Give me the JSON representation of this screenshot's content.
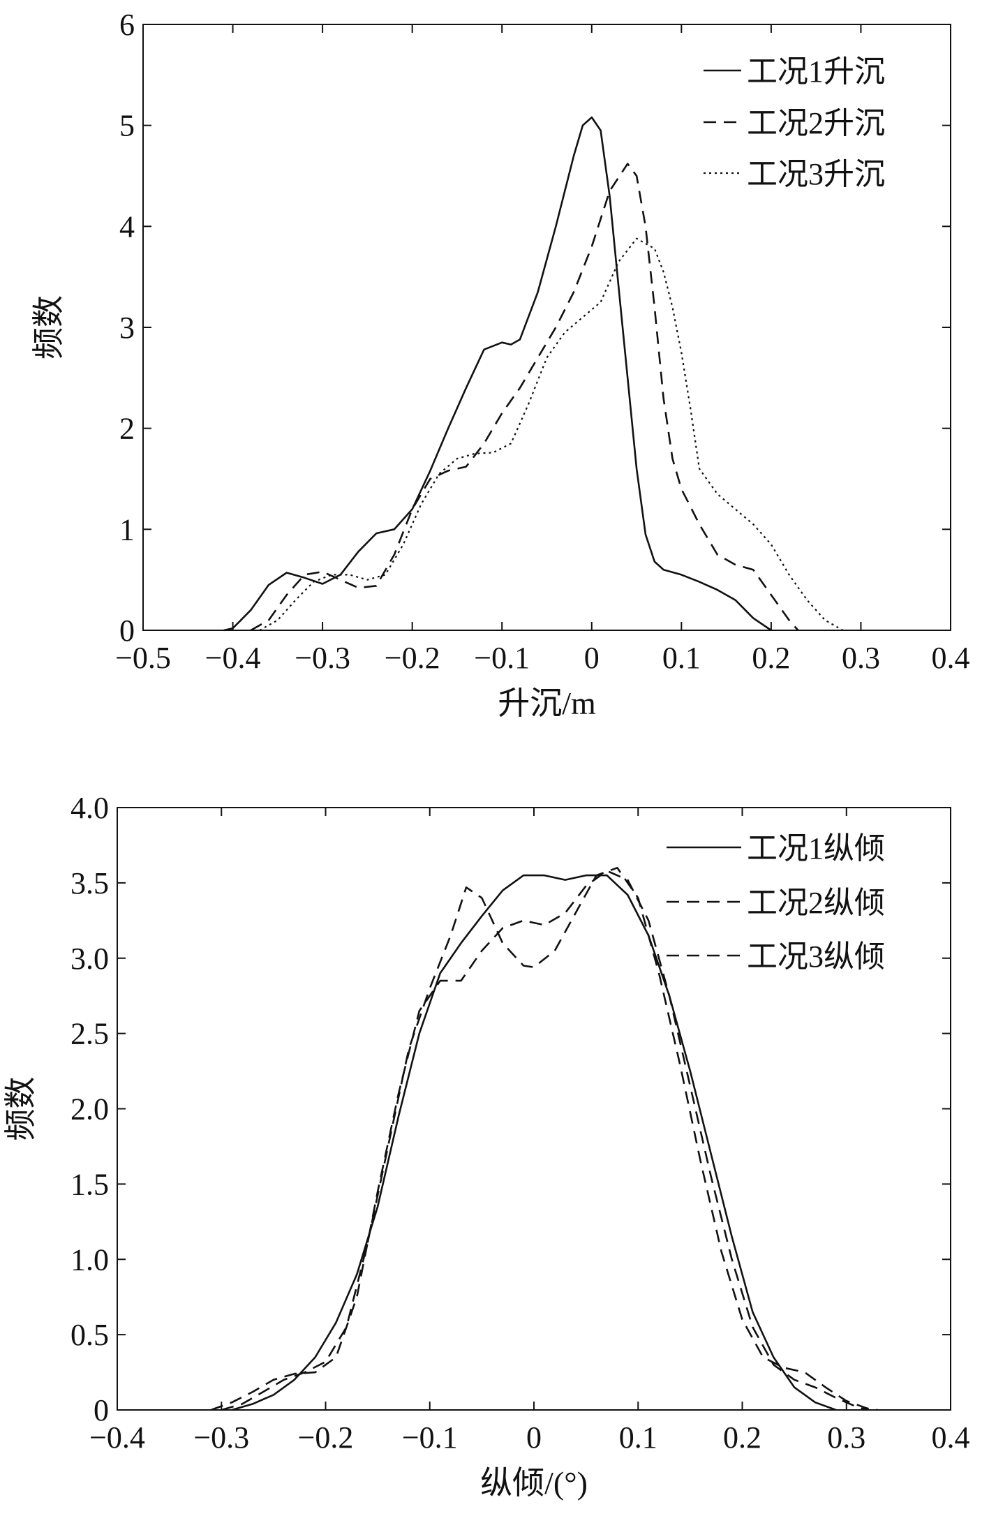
{
  "chart_data": [
    {
      "type": "line",
      "xlabel": "升沉/m",
      "ylabel": "频数",
      "xlim": [
        -0.5,
        0.4
      ],
      "ylim": [
        0,
        6
      ],
      "xticks": [
        -0.5,
        -0.4,
        -0.3,
        -0.2,
        -0.1,
        0,
        0.1,
        0.2,
        0.3,
        0.4
      ],
      "xtick_labels": [
        "−0.5",
        "−0.4",
        "−0.3",
        "−0.2",
        "−0.1",
        "0",
        "0.1",
        "0.2",
        "0.3",
        "0.4"
      ],
      "yticks": [
        0,
        1,
        2,
        3,
        4,
        5,
        6
      ],
      "ytick_labels": [
        "0",
        "1",
        "2",
        "3",
        "4",
        "5",
        "6"
      ],
      "grid": false,
      "legend_position": "top-right",
      "series": [
        {
          "name": "工况1升沉",
          "style": "solid",
          "points": [
            [
              -0.41,
              0
            ],
            [
              -0.4,
              0.02
            ],
            [
              -0.38,
              0.2
            ],
            [
              -0.36,
              0.45
            ],
            [
              -0.34,
              0.57
            ],
            [
              -0.32,
              0.52
            ],
            [
              -0.3,
              0.46
            ],
            [
              -0.28,
              0.55
            ],
            [
              -0.26,
              0.78
            ],
            [
              -0.24,
              0.96
            ],
            [
              -0.22,
              1.0
            ],
            [
              -0.2,
              1.2
            ],
            [
              -0.18,
              1.58
            ],
            [
              -0.16,
              2.0
            ],
            [
              -0.14,
              2.4
            ],
            [
              -0.12,
              2.78
            ],
            [
              -0.1,
              2.85
            ],
            [
              -0.09,
              2.83
            ],
            [
              -0.08,
              2.88
            ],
            [
              -0.06,
              3.35
            ],
            [
              -0.04,
              4.0
            ],
            [
              -0.02,
              4.7
            ],
            [
              -0.01,
              5.0
            ],
            [
              0.0,
              5.08
            ],
            [
              0.01,
              4.95
            ],
            [
              0.02,
              4.3
            ],
            [
              0.03,
              3.4
            ],
            [
              0.04,
              2.5
            ],
            [
              0.05,
              1.6
            ],
            [
              0.06,
              0.95
            ],
            [
              0.07,
              0.68
            ],
            [
              0.08,
              0.6
            ],
            [
              0.1,
              0.55
            ],
            [
              0.12,
              0.48
            ],
            [
              0.14,
              0.4
            ],
            [
              0.16,
              0.3
            ],
            [
              0.18,
              0.12
            ],
            [
              0.2,
              0
            ]
          ]
        },
        {
          "name": "工况2升沉",
          "style": "dashed",
          "points": [
            [
              -0.38,
              0
            ],
            [
              -0.36,
              0.1
            ],
            [
              -0.34,
              0.35
            ],
            [
              -0.32,
              0.55
            ],
            [
              -0.3,
              0.58
            ],
            [
              -0.28,
              0.5
            ],
            [
              -0.26,
              0.42
            ],
            [
              -0.24,
              0.44
            ],
            [
              -0.22,
              0.75
            ],
            [
              -0.2,
              1.2
            ],
            [
              -0.18,
              1.5
            ],
            [
              -0.16,
              1.58
            ],
            [
              -0.14,
              1.62
            ],
            [
              -0.12,
              1.85
            ],
            [
              -0.1,
              2.15
            ],
            [
              -0.08,
              2.4
            ],
            [
              -0.06,
              2.7
            ],
            [
              -0.04,
              3.0
            ],
            [
              -0.02,
              3.35
            ],
            [
              0.0,
              3.8
            ],
            [
              0.02,
              4.35
            ],
            [
              0.04,
              4.62
            ],
            [
              0.05,
              4.5
            ],
            [
              0.06,
              4.0
            ],
            [
              0.07,
              3.2
            ],
            [
              0.08,
              2.3
            ],
            [
              0.09,
              1.7
            ],
            [
              0.1,
              1.4
            ],
            [
              0.12,
              1.05
            ],
            [
              0.14,
              0.75
            ],
            [
              0.16,
              0.65
            ],
            [
              0.18,
              0.6
            ],
            [
              0.2,
              0.35
            ],
            [
              0.22,
              0.1
            ],
            [
              0.23,
              0
            ]
          ]
        },
        {
          "name": "工况3升沉",
          "style": "dotted",
          "points": [
            [
              -0.37,
              0
            ],
            [
              -0.35,
              0.1
            ],
            [
              -0.33,
              0.3
            ],
            [
              -0.31,
              0.48
            ],
            [
              -0.29,
              0.55
            ],
            [
              -0.27,
              0.55
            ],
            [
              -0.25,
              0.5
            ],
            [
              -0.23,
              0.55
            ],
            [
              -0.21,
              0.85
            ],
            [
              -0.19,
              1.25
            ],
            [
              -0.17,
              1.55
            ],
            [
              -0.15,
              1.7
            ],
            [
              -0.13,
              1.75
            ],
            [
              -0.11,
              1.76
            ],
            [
              -0.09,
              1.85
            ],
            [
              -0.07,
              2.25
            ],
            [
              -0.05,
              2.7
            ],
            [
              -0.03,
              2.95
            ],
            [
              -0.01,
              3.1
            ],
            [
              0.01,
              3.25
            ],
            [
              0.03,
              3.65
            ],
            [
              0.05,
              3.88
            ],
            [
              0.07,
              3.78
            ],
            [
              0.08,
              3.55
            ],
            [
              0.09,
              3.2
            ],
            [
              0.1,
              2.75
            ],
            [
              0.11,
              2.2
            ],
            [
              0.12,
              1.6
            ],
            [
              0.14,
              1.35
            ],
            [
              0.16,
              1.2
            ],
            [
              0.18,
              1.05
            ],
            [
              0.2,
              0.85
            ],
            [
              0.22,
              0.55
            ],
            [
              0.24,
              0.3
            ],
            [
              0.26,
              0.1
            ],
            [
              0.28,
              0
            ]
          ]
        }
      ]
    },
    {
      "type": "line",
      "xlabel": "纵倾/(°)",
      "ylabel": "频数",
      "xlim": [
        -0.4,
        0.4
      ],
      "ylim": [
        0,
        4.0
      ],
      "xticks": [
        -0.4,
        -0.3,
        -0.2,
        -0.1,
        0,
        0.1,
        0.2,
        0.3,
        0.4
      ],
      "xtick_labels": [
        "−0.4",
        "−0.3",
        "−0.2",
        "−0.1",
        "0",
        "0.1",
        "0.2",
        "0.3",
        "0.4"
      ],
      "yticks": [
        0,
        0.5,
        1.0,
        1.5,
        2.0,
        2.5,
        3.0,
        3.5,
        4.0
      ],
      "ytick_labels": [
        "0",
        "0.5",
        "1.0",
        "1.5",
        "2.0",
        "2.5",
        "3.0",
        "3.5",
        "4.0"
      ],
      "grid": false,
      "legend_position": "top-right",
      "series": [
        {
          "name": "工况1纵倾",
          "style": "solid",
          "points": [
            [
              -0.29,
              0
            ],
            [
              -0.27,
              0.04
            ],
            [
              -0.25,
              0.1
            ],
            [
              -0.23,
              0.2
            ],
            [
              -0.21,
              0.35
            ],
            [
              -0.19,
              0.58
            ],
            [
              -0.17,
              0.9
            ],
            [
              -0.15,
              1.35
            ],
            [
              -0.13,
              1.95
            ],
            [
              -0.11,
              2.5
            ],
            [
              -0.09,
              2.9
            ],
            [
              -0.07,
              3.1
            ],
            [
              -0.05,
              3.28
            ],
            [
              -0.03,
              3.45
            ],
            [
              -0.01,
              3.55
            ],
            [
              0.01,
              3.55
            ],
            [
              0.03,
              3.52
            ],
            [
              0.05,
              3.55
            ],
            [
              0.07,
              3.55
            ],
            [
              0.09,
              3.42
            ],
            [
              0.11,
              3.15
            ],
            [
              0.13,
              2.75
            ],
            [
              0.15,
              2.25
            ],
            [
              0.17,
              1.7
            ],
            [
              0.19,
              1.15
            ],
            [
              0.21,
              0.65
            ],
            [
              0.23,
              0.35
            ],
            [
              0.25,
              0.15
            ],
            [
              0.27,
              0.05
            ],
            [
              0.29,
              0
            ]
          ]
        },
        {
          "name": "工况2纵倾",
          "style": "dashed",
          "points": [
            [
              -0.31,
              0
            ],
            [
              -0.29,
              0.05
            ],
            [
              -0.27,
              0.12
            ],
            [
              -0.25,
              0.2
            ],
            [
              -0.23,
              0.24
            ],
            [
              -0.21,
              0.25
            ],
            [
              -0.19,
              0.35
            ],
            [
              -0.17,
              0.75
            ],
            [
              -0.15,
              1.45
            ],
            [
              -0.13,
              2.1
            ],
            [
              -0.11,
              2.65
            ],
            [
              -0.09,
              2.85
            ],
            [
              -0.07,
              2.85
            ],
            [
              -0.05,
              3.05
            ],
            [
              -0.03,
              3.2
            ],
            [
              -0.01,
              3.25
            ],
            [
              0.01,
              3.22
            ],
            [
              0.03,
              3.3
            ],
            [
              0.05,
              3.48
            ],
            [
              0.07,
              3.58
            ],
            [
              0.09,
              3.52
            ],
            [
              0.11,
              3.25
            ],
            [
              0.13,
              2.75
            ],
            [
              0.15,
              2.15
            ],
            [
              0.17,
              1.55
            ],
            [
              0.19,
              1.0
            ],
            [
              0.21,
              0.55
            ],
            [
              0.23,
              0.3
            ],
            [
              0.25,
              0.2
            ],
            [
              0.27,
              0.15
            ],
            [
              0.29,
              0.08
            ],
            [
              0.31,
              0.02
            ],
            [
              0.32,
              0
            ]
          ]
        },
        {
          "name": "工况3纵倾",
          "style": "dashed",
          "points": [
            [
              -0.3,
              0
            ],
            [
              -0.28,
              0.04
            ],
            [
              -0.26,
              0.12
            ],
            [
              -0.24,
              0.2
            ],
            [
              -0.22,
              0.25
            ],
            [
              -0.2,
              0.32
            ],
            [
              -0.18,
              0.55
            ],
            [
              -0.16,
              1.1
            ],
            [
              -0.14,
              1.75
            ],
            [
              -0.12,
              2.4
            ],
            [
              -0.1,
              2.8
            ],
            [
              -0.08,
              3.15
            ],
            [
              -0.065,
              3.47
            ],
            [
              -0.05,
              3.4
            ],
            [
              -0.03,
              3.1
            ],
            [
              -0.01,
              2.95
            ],
            [
              0.0,
              2.94
            ],
            [
              0.02,
              3.05
            ],
            [
              0.04,
              3.3
            ],
            [
              0.06,
              3.55
            ],
            [
              0.08,
              3.6
            ],
            [
              0.1,
              3.4
            ],
            [
              0.12,
              2.9
            ],
            [
              0.14,
              2.3
            ],
            [
              0.16,
              1.65
            ],
            [
              0.18,
              1.05
            ],
            [
              0.2,
              0.6
            ],
            [
              0.22,
              0.35
            ],
            [
              0.24,
              0.28
            ],
            [
              0.26,
              0.25
            ],
            [
              0.28,
              0.15
            ],
            [
              0.3,
              0.06
            ],
            [
              0.32,
              0.01
            ],
            [
              0.33,
              0
            ]
          ]
        }
      ]
    }
  ]
}
